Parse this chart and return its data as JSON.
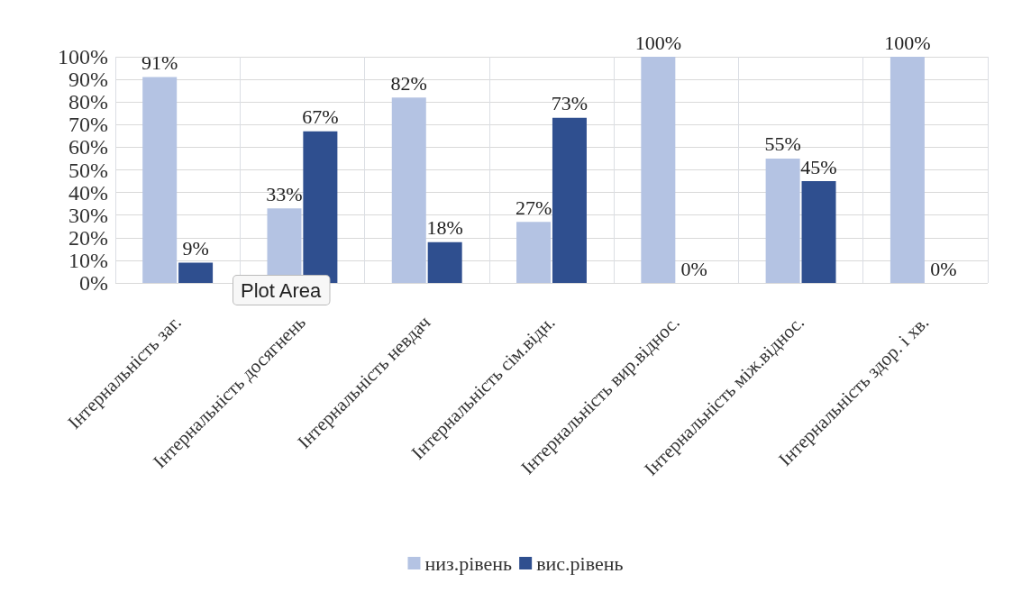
{
  "chart_data": {
    "type": "bar",
    "categories": [
      "Інтернальність заг.",
      "Інтернальність досягнень",
      "Інтернальність невдач",
      "Інтернальність сім.відн.",
      "Інтернальність вир.віднос.",
      "Інтернальність між.віднос.",
      "Інтернальність здор. і хв."
    ],
    "series": [
      {
        "name": "низ.рівень",
        "color": "#b4c3e3",
        "values": [
          91,
          33,
          82,
          27,
          100,
          55,
          100
        ],
        "value_labels": [
          "91%",
          "33%",
          "82%",
          "27%",
          "100%",
          "55%",
          "100%"
        ]
      },
      {
        "name": "вис.рівень",
        "color": "#2f4f8f",
        "values": [
          9,
          67,
          18,
          73,
          0,
          45,
          0
        ],
        "value_labels": [
          "9%",
          "67%",
          "18%",
          "73%",
          "0%",
          "45%",
          "0%"
        ]
      }
    ],
    "ylim": [
      0,
      100
    ],
    "yticks": [
      {
        "value": 0,
        "label": "0%"
      },
      {
        "value": 10,
        "label": "10%"
      },
      {
        "value": 20,
        "label": "20%"
      },
      {
        "value": 30,
        "label": "30%"
      },
      {
        "value": 40,
        "label": "40%"
      },
      {
        "value": 50,
        "label": "50%"
      },
      {
        "value": 60,
        "label": "60%"
      },
      {
        "value": 70,
        "label": "70%"
      },
      {
        "value": 80,
        "label": "80%"
      },
      {
        "value": 90,
        "label": "90%"
      },
      {
        "value": 100,
        "label": "100%"
      }
    ],
    "grid": true,
    "legend": "bottom",
    "annotations": [
      "Plot Area"
    ]
  }
}
